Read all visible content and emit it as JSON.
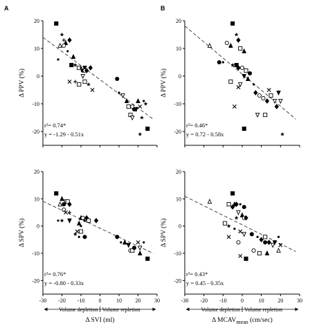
{
  "figure": {
    "panel_letters": [
      "A",
      "B"
    ],
    "x_note": {
      "left": "Volume depletion",
      "right": "Volume repletion"
    }
  },
  "chart_data": [
    {
      "id": "A_top",
      "type": "scatter",
      "panel": "A",
      "xlabel": "",
      "ylabel": "Δ PPV (%)",
      "xlim": [
        -30,
        30
      ],
      "ylim": [
        -25,
        20
      ],
      "xticks": [
        -30,
        -20,
        -10,
        0,
        10,
        20,
        30
      ],
      "yticks": [
        20,
        10,
        0,
        -10,
        -20
      ],
      "x_ticklabels_shown": false,
      "regression": {
        "intercept": -1.29,
        "slope": -0.51
      },
      "annotations": {
        "r2": "r²= 0.74*",
        "equation": "y = -1.29 - 0.51x"
      },
      "grid": false,
      "points": [
        {
          "x": -23,
          "y": 19,
          "m": "sqf"
        },
        {
          "x": -20,
          "y": 15,
          "m": "star"
        },
        {
          "x": -19,
          "y": 13,
          "m": "cross"
        },
        {
          "x": -18,
          "y": 12,
          "m": "tri"
        },
        {
          "x": -19,
          "y": 11,
          "m": "circ"
        },
        {
          "x": -21,
          "y": 11,
          "m": "trio"
        },
        {
          "x": -16,
          "y": 13,
          "m": "dia"
        },
        {
          "x": -17,
          "y": 9,
          "m": "dot"
        },
        {
          "x": -22,
          "y": 6,
          "m": "dot"
        },
        {
          "x": -14,
          "y": 7,
          "m": "tri"
        },
        {
          "x": -13,
          "y": 4,
          "m": "star"
        },
        {
          "x": -15,
          "y": 4,
          "m": "sqf"
        },
        {
          "x": -11,
          "y": 3,
          "m": "sq"
        },
        {
          "x": -10,
          "y": 3,
          "m": "dot"
        },
        {
          "x": -8,
          "y": 3,
          "m": "tridf"
        },
        {
          "x": -9,
          "y": 2,
          "m": "circf"
        },
        {
          "x": -8,
          "y": 2,
          "m": "circ"
        },
        {
          "x": -7,
          "y": 2,
          "m": "dia"
        },
        {
          "x": -5,
          "y": 3,
          "m": "diaf"
        },
        {
          "x": -9,
          "y": 0,
          "m": "trid"
        },
        {
          "x": -8,
          "y": -2,
          "m": "sq"
        },
        {
          "x": -11,
          "y": -3,
          "m": "sq"
        },
        {
          "x": -13,
          "y": -2,
          "m": "cross"
        },
        {
          "x": -6,
          "y": -3,
          "m": "star"
        },
        {
          "x": -4,
          "y": -5,
          "m": "x"
        },
        {
          "x": -16,
          "y": -2,
          "m": "x"
        },
        {
          "x": 9,
          "y": -1,
          "m": "circf"
        },
        {
          "x": 10,
          "y": -6,
          "m": "dot"
        },
        {
          "x": 12,
          "y": -7,
          "m": "trid"
        },
        {
          "x": 14,
          "y": -9,
          "m": "trif"
        },
        {
          "x": 15,
          "y": -11,
          "m": "sq"
        },
        {
          "x": 17,
          "y": -11,
          "m": "circ"
        },
        {
          "x": 19,
          "y": -12,
          "m": "tridf"
        },
        {
          "x": 20,
          "y": -9,
          "m": "tri"
        },
        {
          "x": 21,
          "y": -11,
          "m": "x"
        },
        {
          "x": 23,
          "y": -9,
          "m": "dot"
        },
        {
          "x": 16,
          "y": -14,
          "m": "sq"
        },
        {
          "x": 17,
          "y": -15,
          "m": "trid"
        },
        {
          "x": 22,
          "y": -15,
          "m": "star"
        },
        {
          "x": 24,
          "y": -10,
          "m": "star"
        },
        {
          "x": 21,
          "y": -21,
          "m": "star"
        },
        {
          "x": 25,
          "y": -19,
          "m": "sqf"
        },
        {
          "x": 18,
          "y": -12,
          "m": "circf"
        }
      ]
    },
    {
      "id": "B_top",
      "type": "scatter",
      "panel": "B",
      "xlabel": "",
      "ylabel": "Δ PPV (%)",
      "xlim": [
        -30,
        30
      ],
      "ylim": [
        -25,
        20
      ],
      "xticks": [
        -30,
        -20,
        -10,
        0,
        10,
        20,
        30
      ],
      "yticks": [
        20,
        10,
        0,
        -10,
        -20
      ],
      "x_ticklabels_shown": false,
      "regression": {
        "intercept": 0.72,
        "slope": -0.58
      },
      "annotations": {
        "r2": "r²= 0.46*",
        "equation": "y = 0.72 - 0.58x"
      },
      "grid": false,
      "points": [
        {
          "x": -5,
          "y": 19,
          "m": "sqf"
        },
        {
          "x": -3,
          "y": 15,
          "m": "star"
        },
        {
          "x": -8,
          "y": 12,
          "m": "circ"
        },
        {
          "x": -17,
          "y": 11,
          "m": "trio"
        },
        {
          "x": -6,
          "y": 11,
          "m": "tri"
        },
        {
          "x": -2,
          "y": 13,
          "m": "dia"
        },
        {
          "x": -1,
          "y": 10,
          "m": "sq"
        },
        {
          "x": 1,
          "y": 9,
          "m": "tri"
        },
        {
          "x": -12,
          "y": 5,
          "m": "circf"
        },
        {
          "x": -10,
          "y": 5,
          "m": "dot"
        },
        {
          "x": -5,
          "y": 4,
          "m": "star"
        },
        {
          "x": -3,
          "y": 4,
          "m": "sqf"
        },
        {
          "x": -2,
          "y": 3,
          "m": "dia"
        },
        {
          "x": 2,
          "y": 2,
          "m": "sq"
        },
        {
          "x": 0,
          "y": 3,
          "m": "circ"
        },
        {
          "x": 1,
          "y": 0,
          "m": "tridf"
        },
        {
          "x": 4,
          "y": 1,
          "m": "circf"
        },
        {
          "x": 3,
          "y": -1,
          "m": "tri"
        },
        {
          "x": -6,
          "y": -2,
          "m": "sq"
        },
        {
          "x": -1,
          "y": -3,
          "m": "trid"
        },
        {
          "x": -2,
          "y": -4,
          "m": "x"
        },
        {
          "x": -4,
          "y": -11,
          "m": "x"
        },
        {
          "x": 6,
          "y": -3,
          "m": "dot"
        },
        {
          "x": 7,
          "y": -6,
          "m": "diaf"
        },
        {
          "x": 9,
          "y": -7,
          "m": "circ"
        },
        {
          "x": 11,
          "y": -8,
          "m": "circ"
        },
        {
          "x": 13,
          "y": -9,
          "m": "dia"
        },
        {
          "x": 15,
          "y": -7,
          "m": "sq"
        },
        {
          "x": 17,
          "y": -9,
          "m": "trid"
        },
        {
          "x": 18,
          "y": -11,
          "m": "diaf"
        },
        {
          "x": 19,
          "y": -6,
          "m": "tridf"
        },
        {
          "x": 20,
          "y": -9,
          "m": "trid"
        },
        {
          "x": 8,
          "y": -14,
          "m": "trid"
        },
        {
          "x": 12,
          "y": -14,
          "m": "sq"
        },
        {
          "x": 1,
          "y": -19,
          "m": "sqf"
        },
        {
          "x": 21,
          "y": -21,
          "m": "star"
        },
        {
          "x": 14,
          "y": -5,
          "m": "x"
        }
      ]
    },
    {
      "id": "A_bottom",
      "type": "scatter",
      "panel": "A",
      "xlabel": "Δ SVI (ml)",
      "ylabel": "Δ SPV (%)",
      "xlim": [
        -30,
        30
      ],
      "ylim": [
        -25,
        20
      ],
      "xticks": [
        -30,
        -20,
        -10,
        0,
        10,
        20,
        30
      ],
      "yticks": [
        20,
        10,
        0,
        -10,
        -20
      ],
      "x_ticklabels_shown": true,
      "regression": {
        "intercept": -0.8,
        "slope": -0.33
      },
      "annotations": {
        "r2": "r²= 0.76*",
        "equation": "y = -0.80 - 0.33x"
      },
      "grid": false,
      "points": [
        {
          "x": -23,
          "y": 12,
          "m": "sqf"
        },
        {
          "x": -20,
          "y": 10,
          "m": "tri"
        },
        {
          "x": -21,
          "y": 8,
          "m": "trio"
        },
        {
          "x": -19,
          "y": 8,
          "m": "circf"
        },
        {
          "x": -18,
          "y": 9,
          "m": "trid"
        },
        {
          "x": -17,
          "y": 9,
          "m": "sq"
        },
        {
          "x": -16,
          "y": 8,
          "m": "dia"
        },
        {
          "x": -19,
          "y": 6,
          "m": "circ"
        },
        {
          "x": -18,
          "y": 5,
          "m": "x"
        },
        {
          "x": -16,
          "y": 5,
          "m": "cross"
        },
        {
          "x": -22,
          "y": 2,
          "m": "dot"
        },
        {
          "x": -20,
          "y": 2,
          "m": "star"
        },
        {
          "x": -16,
          "y": 2,
          "m": "tridf"
        },
        {
          "x": -10,
          "y": 3,
          "m": "tri"
        },
        {
          "x": -9,
          "y": 3,
          "m": "circ"
        },
        {
          "x": -8,
          "y": 2,
          "m": "star"
        },
        {
          "x": -7,
          "y": 3,
          "m": "dia"
        },
        {
          "x": -6,
          "y": 2,
          "m": "sq"
        },
        {
          "x": -11,
          "y": 1,
          "m": "tri"
        },
        {
          "x": -10,
          "y": 0,
          "m": "dot"
        },
        {
          "x": -2,
          "y": 2,
          "m": "diaf"
        },
        {
          "x": -12,
          "y": -2,
          "m": "x"
        },
        {
          "x": -10,
          "y": -2,
          "m": "sq"
        },
        {
          "x": -13,
          "y": -3,
          "m": "star"
        },
        {
          "x": -8,
          "y": -4,
          "m": "circf"
        },
        {
          "x": -11,
          "y": -4,
          "m": "dot"
        },
        {
          "x": 9,
          "y": -4,
          "m": "circf"
        },
        {
          "x": 11,
          "y": -6,
          "m": "dot"
        },
        {
          "x": 13,
          "y": -6,
          "m": "tri"
        },
        {
          "x": 15,
          "y": -7,
          "m": "tridf"
        },
        {
          "x": 16,
          "y": -9,
          "m": "circ"
        },
        {
          "x": 17,
          "y": -9,
          "m": "sq"
        },
        {
          "x": 18,
          "y": -8,
          "m": "circf"
        },
        {
          "x": 20,
          "y": -6,
          "m": "x"
        },
        {
          "x": 21,
          "y": -8,
          "m": "trid"
        },
        {
          "x": 23,
          "y": -6,
          "m": "dot"
        },
        {
          "x": 25,
          "y": -12,
          "m": "sqf"
        },
        {
          "x": 21,
          "y": -10,
          "m": "tri"
        }
      ]
    },
    {
      "id": "B_bottom",
      "type": "scatter",
      "panel": "B",
      "xlabel": "Δ MCAV",
      "xlabel_sub": "mean",
      "xlabel_unit": " (cm/sec)",
      "ylabel": "Δ SPV (%)",
      "xlim": [
        -30,
        30
      ],
      "ylim": [
        -25,
        20
      ],
      "xticks": [
        -30,
        -20,
        -10,
        0,
        10,
        20,
        30
      ],
      "yticks": [
        20,
        10,
        0,
        -10,
        -20
      ],
      "x_ticklabels_shown": true,
      "regression": {
        "intercept": 0.45,
        "slope": -0.35
      },
      "annotations": {
        "r2": "r²= 0.43*",
        "equation": "y = 0.45 - 0.35x"
      },
      "grid": false,
      "points": [
        {
          "x": -5,
          "y": 12,
          "m": "sqf"
        },
        {
          "x": -17,
          "y": 9,
          "m": "trio"
        },
        {
          "x": -7,
          "y": 8,
          "m": "sq"
        },
        {
          "x": -5,
          "y": 7,
          "m": "dia"
        },
        {
          "x": -4,
          "y": 8,
          "m": "tri"
        },
        {
          "x": -3,
          "y": 8,
          "m": "diaf"
        },
        {
          "x": -1,
          "y": 8,
          "m": "dot"
        },
        {
          "x": 1,
          "y": 7,
          "m": "circf"
        },
        {
          "x": -2,
          "y": 5,
          "m": "trid"
        },
        {
          "x": 0,
          "y": 4,
          "m": "tri"
        },
        {
          "x": 1,
          "y": 3,
          "m": "circ"
        },
        {
          "x": 2,
          "y": 3,
          "m": "dia"
        },
        {
          "x": -3,
          "y": 3,
          "m": "star"
        },
        {
          "x": -9,
          "y": 1,
          "m": "sq"
        },
        {
          "x": -7,
          "y": 0,
          "m": "star"
        },
        {
          "x": -4,
          "y": -1,
          "m": "dot"
        },
        {
          "x": -1,
          "y": -2,
          "m": "x"
        },
        {
          "x": 1,
          "y": -3,
          "m": "trid"
        },
        {
          "x": -7,
          "y": -4,
          "m": "x"
        },
        {
          "x": -2,
          "y": -6,
          "m": "circ"
        },
        {
          "x": 5,
          "y": -3,
          "m": "circf"
        },
        {
          "x": 8,
          "y": -4,
          "m": "dot"
        },
        {
          "x": 10,
          "y": -5,
          "m": "dia"
        },
        {
          "x": 12,
          "y": -4,
          "m": "sq"
        },
        {
          "x": 14,
          "y": -6,
          "m": "diaf"
        },
        {
          "x": 17,
          "y": -6,
          "m": "tridf"
        },
        {
          "x": 19,
          "y": -4,
          "m": "dot"
        },
        {
          "x": 20,
          "y": -7,
          "m": "x"
        },
        {
          "x": 16,
          "y": -7,
          "m": "trid"
        },
        {
          "x": 6,
          "y": -9,
          "m": "circ"
        },
        {
          "x": 9,
          "y": -10,
          "m": "sq"
        },
        {
          "x": 13,
          "y": -10,
          "m": "tri"
        },
        {
          "x": 19,
          "y": -9,
          "m": "trio"
        },
        {
          "x": -1,
          "y": -11,
          "m": "x"
        },
        {
          "x": 2,
          "y": -12,
          "m": "sqf"
        },
        {
          "x": 12,
          "y": -6,
          "m": "circf"
        }
      ]
    }
  ]
}
